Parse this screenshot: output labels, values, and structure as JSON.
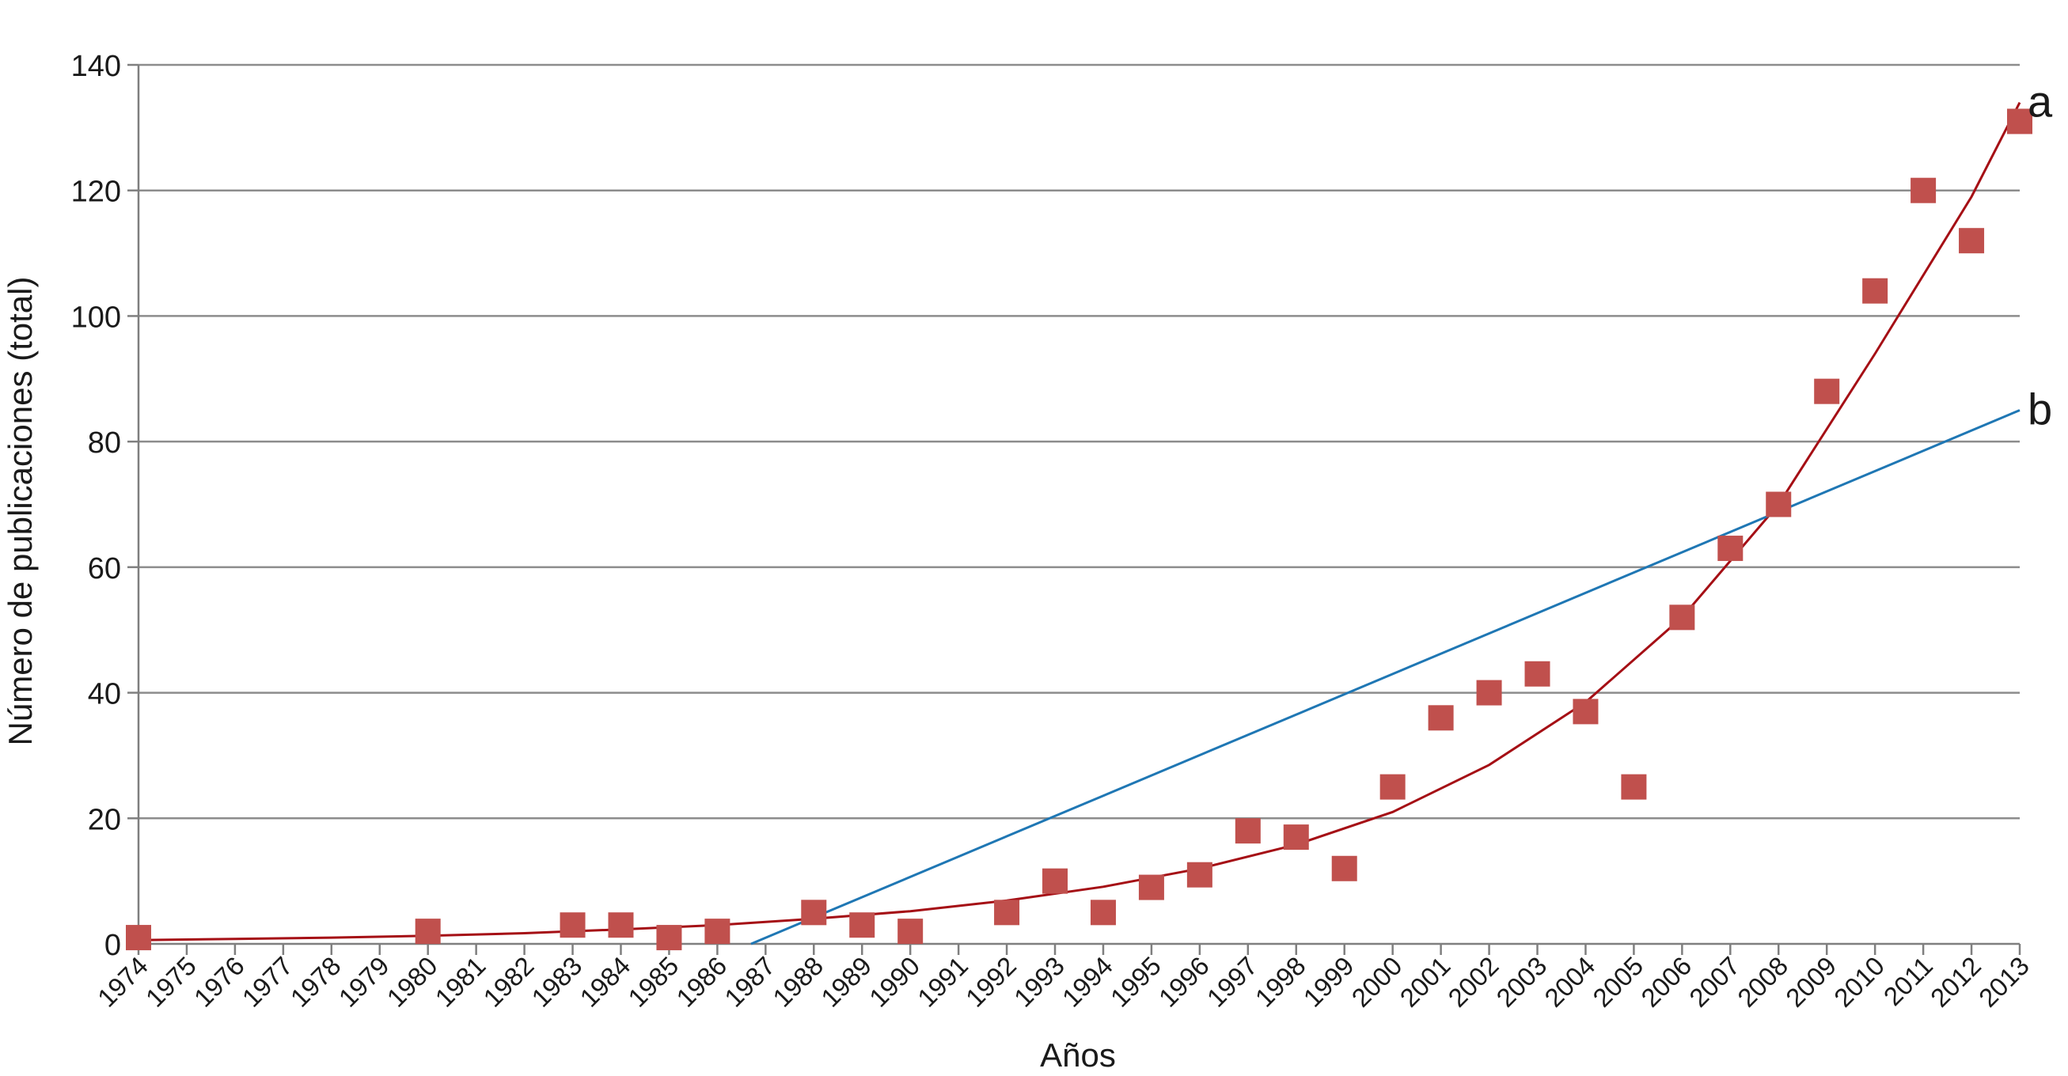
{
  "chart_data": {
    "type": "scatter",
    "xlabel": "Años",
    "ylabel": "Número de publicaciones (total)",
    "xlim": [
      1974,
      2013
    ],
    "ylim": [
      0,
      140
    ],
    "yticks": [
      0,
      20,
      40,
      60,
      80,
      100,
      120,
      140
    ],
    "xticks": [
      "1974",
      "1975",
      "1976",
      "1977",
      "1978",
      "1979",
      "1980",
      "1981",
      "1982",
      "1983",
      "1984",
      "1985",
      "1986",
      "1987",
      "1988",
      "1989",
      "1990",
      "1991",
      "1992",
      "1993",
      "1994",
      "1995",
      "1996",
      "1997",
      "1998",
      "1999",
      "2000",
      "2001",
      "2002",
      "2003",
      "2004",
      "2005",
      "2006",
      "2007",
      "2008",
      "2009",
      "2010",
      "2011",
      "2012",
      "2013"
    ],
    "grid": true,
    "series": [
      {
        "color": "#c0504d",
        "marker": "square",
        "points": [
          {
            "x": 1974,
            "y": 1
          },
          {
            "x": 1980,
            "y": 2
          },
          {
            "x": 1983,
            "y": 3
          },
          {
            "x": 1984,
            "y": 3
          },
          {
            "x": 1985,
            "y": 1
          },
          {
            "x": 1986,
            "y": 2
          },
          {
            "x": 1988,
            "y": 5
          },
          {
            "x": 1989,
            "y": 3
          },
          {
            "x": 1990,
            "y": 2
          },
          {
            "x": 1992,
            "y": 5
          },
          {
            "x": 1993,
            "y": 10
          },
          {
            "x": 1994,
            "y": 5
          },
          {
            "x": 1995,
            "y": 9
          },
          {
            "x": 1996,
            "y": 11
          },
          {
            "x": 1997,
            "y": 18
          },
          {
            "x": 1998,
            "y": 17
          },
          {
            "x": 1999,
            "y": 12
          },
          {
            "x": 2000,
            "y": 25
          },
          {
            "x": 2001,
            "y": 36
          },
          {
            "x": 2002,
            "y": 40
          },
          {
            "x": 2003,
            "y": 43
          },
          {
            "x": 2004,
            "y": 37
          },
          {
            "x": 2005,
            "y": 25
          },
          {
            "x": 2006,
            "y": 52
          },
          {
            "x": 2007,
            "y": 63
          },
          {
            "x": 2008,
            "y": 70
          },
          {
            "x": 2009,
            "y": 88
          },
          {
            "x": 2010,
            "y": 104
          },
          {
            "x": 2011,
            "y": 120
          },
          {
            "x": 2012,
            "y": 112
          },
          {
            "x": 2013,
            "y": 131
          }
        ]
      }
    ],
    "trendlines": [
      {
        "label": "a",
        "kind": "exponential",
        "color": "#a50f15",
        "points": [
          {
            "x": 1974,
            "y": 0.6
          },
          {
            "x": 1976,
            "y": 0.8
          },
          {
            "x": 1978,
            "y": 1.0
          },
          {
            "x": 1980,
            "y": 1.3
          },
          {
            "x": 1982,
            "y": 1.7
          },
          {
            "x": 1984,
            "y": 2.3
          },
          {
            "x": 1986,
            "y": 3.0
          },
          {
            "x": 1988,
            "y": 4.0
          },
          {
            "x": 1990,
            "y": 5.2
          },
          {
            "x": 1992,
            "y": 6.9
          },
          {
            "x": 1994,
            "y": 9.1
          },
          {
            "x": 1996,
            "y": 12.0
          },
          {
            "x": 1998,
            "y": 15.8
          },
          {
            "x": 2000,
            "y": 21.0
          },
          {
            "x": 2002,
            "y": 28.5
          },
          {
            "x": 2004,
            "y": 38.5
          },
          {
            "x": 2006,
            "y": 52.0
          },
          {
            "x": 2008,
            "y": 70.0
          },
          {
            "x": 2010,
            "y": 94.0
          },
          {
            "x": 2012,
            "y": 119.0
          },
          {
            "x": 2013,
            "y": 134.0
          }
        ]
      },
      {
        "label": "b",
        "kind": "linear",
        "color": "#1f77b4",
        "points": [
          {
            "x": 1986.7,
            "y": 0
          },
          {
            "x": 2013,
            "y": 85
          }
        ]
      }
    ]
  }
}
